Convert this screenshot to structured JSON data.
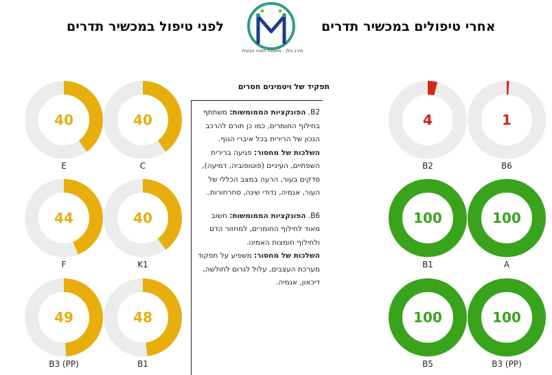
{
  "header": {
    "after_title": "אחרי טיפולים במכשיר תדרים",
    "before_title": "לפני טיפול במכשיר תדרים",
    "logo_caption": "מירב גולן - מאמנת תזונה טבעית"
  },
  "colors": {
    "yellow": "#e8ae0e",
    "red": "#d4241c",
    "green": "#3aa31c",
    "track": "#ececec"
  },
  "info": {
    "title": "תפקיד של ויטמינים חסרים",
    "b2_name": "B2.",
    "b2_func_label": "הפונקציות הממומשות:",
    "b2_func_text": "משתתף בחילוף החומרים, כמו כן תורם להרכב הנכון של הרירית בכל איברי הגוף.",
    "b2_lack_label": "השלכות של מחסור:",
    "b2_lack_text": "פגיעה ברירית השפתיים, העיניים (פוטופוביה, דמיעה), סדקים בעור, הרעה במצב הכללי של העור, אנמיה, נדודי שינה, סחרחורות..",
    "b6_name": "B6.",
    "b6_func_label": "הפונקציות הממומשות:",
    "b6_func_text": "חשוב מאוד לחילוף החומרים, למחזור הדם ולחילוף חומצות האמינו.",
    "b6_lack_label": "השלכות של מחסור:",
    "b6_lack_text": "משפיע על תפקוד מערכת העצבים, עלול לגרום לחולשה, דיכאון, אנמיה."
  },
  "before_gauges": [
    {
      "label": "E",
      "value": 40
    },
    {
      "label": "C",
      "value": 40
    },
    {
      "label": "F",
      "value": 44
    },
    {
      "label": "K1",
      "value": 40
    },
    {
      "label": "B3 (PP)",
      "value": 49
    },
    {
      "label": "B1",
      "value": 48
    }
  ],
  "after_gauges": [
    {
      "label": "B2",
      "value": 4
    },
    {
      "label": "B6",
      "value": 1
    },
    {
      "label": "B1",
      "value": 100
    },
    {
      "label": "A",
      "value": 100
    },
    {
      "label": "B5",
      "value": 100
    },
    {
      "label": "B3 (PP)",
      "value": 100
    }
  ]
}
